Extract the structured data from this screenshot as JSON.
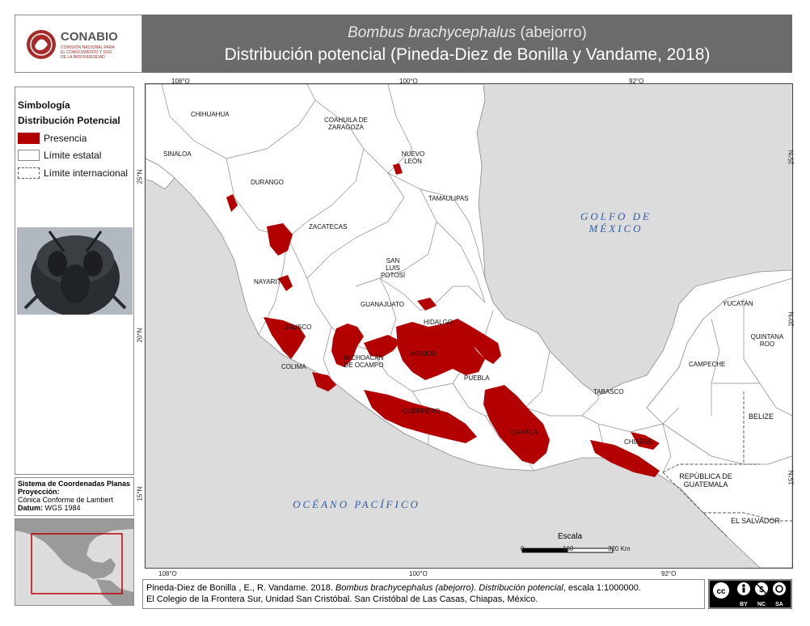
{
  "header": {
    "org_name": "CONABIO",
    "org_subtitle_1": "COMISIÓN NACIONAL PARA",
    "org_subtitle_2": "EL CONOCIMIENTO Y USO",
    "org_subtitle_3": "DE LA BIODIVERSIDAD",
    "species": "Bombus brachycephalus",
    "common_name": " (abejorro)",
    "subtitle": "Distribución potencial (Pineda-Diez de Bonilla  y Vandame, 2018)"
  },
  "legend": {
    "title": "Simbología",
    "subtitle": "Distribución Potencial",
    "items": [
      {
        "label": "Presencia",
        "color": "#b30000"
      },
      {
        "label": "Límite estatal",
        "color": "#ffffff"
      },
      {
        "label": "Límite internacional",
        "color": "#ffffff"
      }
    ]
  },
  "crs": {
    "title": "Sistema de Coordenadas Planas",
    "projection_label": "Proyección:",
    "projection_value": "Cónica Conforme de Lambert",
    "datum_label": "Datum:",
    "datum_value": "WGS 1984"
  },
  "map": {
    "ticks_top": [
      "108°O",
      "100°O",
      "92°O"
    ],
    "ticks_bottom": [
      "108°O",
      "100°O",
      "92°O"
    ],
    "ticks_left": [
      "25°N",
      "20°N",
      "15°N"
    ],
    "ticks_right": [
      "25°N",
      "20°N",
      "15°N"
    ],
    "states": {
      "chihuahua": "CHIHUAHUA",
      "coahuila": "COAHUILA DE ZARAGOZA",
      "sinaloa": "SINALOA",
      "nuevo_leon": "NUEVO LEÓN",
      "durango": "DURANGO",
      "tamaulipas": "TAMAULIPAS",
      "zacatecas": "ZACATECAS",
      "san_luis_potosi": "SAN LUIS POTOSÍ",
      "nayarit": "NAYARIT",
      "guanajuato": "GUANAJUATO",
      "hidalgo": "HIDALGO",
      "jalisco": "JALISCO",
      "mexico": "MÉXICO",
      "michoacan": "MICHOACÁN DE OCAMPO",
      "colima": "COLIMA",
      "puebla": "PUEBLA",
      "tabasco": "TABASCO",
      "guerrero": "GUERRERO",
      "oaxaca": "OAXACA",
      "chiapas": "CHIAPAS",
      "campeche": "CAMPECHE",
      "yucatan": "YUCATÁN",
      "quintana_roo": "QUINTANA ROO"
    },
    "countries": {
      "belize": "BELIZE",
      "guatemala": "REPÚBLICA DE GUATEMALA",
      "el_salvador": "EL SALVADOR"
    },
    "seas": {
      "gulf": "GOLFO DE MÉXICO",
      "pacific": "OCÉANO PACÍFICO"
    },
    "scale": {
      "title": "Escala",
      "labels": [
        "0",
        "160",
        "320 Km"
      ]
    },
    "colors": {
      "land": "#ffffff",
      "sea": "#dcdcdc",
      "presence": "#b30000",
      "boundary": "#8a8a8a"
    }
  },
  "credit": {
    "authors": "Pineda-Diez de Bonilla , E., R. Vandame. 2018. ",
    "species": "Bombus brachycephalus (abejorro). Distribución potencial",
    "scale_text": ", escala 1:1000000.",
    "line2": "El Colegio de la Frontera Sur, Unidad San Cristóbal. San Cristóbal de Las Casas, Chiapas, México."
  },
  "license": {
    "labels": [
      "BY",
      "NC",
      "SA"
    ]
  }
}
